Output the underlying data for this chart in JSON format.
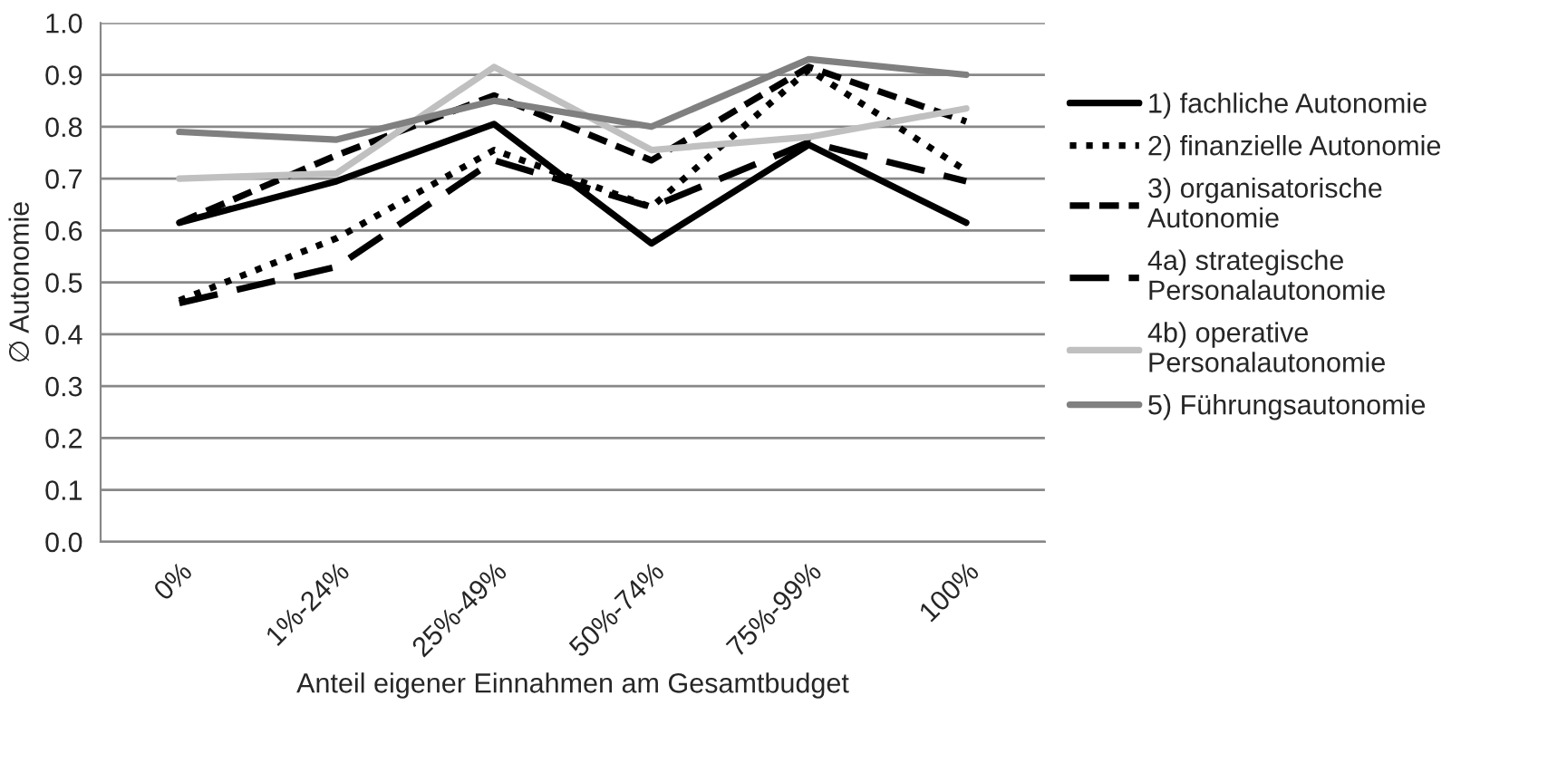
{
  "chart_data": {
    "type": "line",
    "xlabel": "Anteil eigener Einnahmen am Gesamtbudget",
    "ylabel": "∅ Autonomie",
    "categories": [
      "0%",
      "1%-24%",
      "25%-49%",
      "50%-74%",
      "75%-99%",
      "100%"
    ],
    "series": [
      {
        "name": "1) fachliche Autonomie",
        "color": "#000000",
        "line_style": "solid",
        "values": [
          0.615,
          0.695,
          0.805,
          0.575,
          0.765,
          0.615
        ]
      },
      {
        "name": "2) finanzielle Autonomie",
        "color": "#000000",
        "line_style": "dotted",
        "values": [
          0.465,
          0.585,
          0.755,
          0.645,
          0.91,
          0.715
        ]
      },
      {
        "name": "3) organisatorische Autonomie",
        "color": "#000000",
        "line_style": "dashed",
        "values": [
          0.615,
          0.745,
          0.86,
          0.735,
          0.915,
          0.81
        ]
      },
      {
        "name": "4a) strategische Personalautonomie",
        "color": "#000000",
        "line_style": "dashed",
        "values": [
          0.46,
          0.53,
          0.735,
          0.645,
          0.77,
          0.695
        ]
      },
      {
        "name": "4b) operative Personalautonomie",
        "color": "#c0c0c0",
        "line_style": "solid",
        "values": [
          0.7,
          0.71,
          0.915,
          0.755,
          0.78,
          0.835
        ]
      },
      {
        "name": "5) Führungsautonomie",
        "color": "#808080",
        "line_style": "solid",
        "values": [
          0.79,
          0.775,
          0.85,
          0.8,
          0.93,
          0.9
        ]
      }
    ],
    "ylim": [
      0,
      1
    ],
    "yticks": [
      {
        "value": 0,
        "label": "0.0"
      },
      {
        "value": 0.1,
        "label": "0.1"
      },
      {
        "value": 0.2,
        "label": "0.2"
      },
      {
        "value": 0.3,
        "label": "0.3"
      },
      {
        "value": 0.4,
        "label": "0.4"
      },
      {
        "value": 0.5,
        "label": "0.5"
      },
      {
        "value": 0.6,
        "label": "0.6"
      },
      {
        "value": 0.7,
        "label": "0.7"
      },
      {
        "value": 0.8,
        "label": "0.8"
      },
      {
        "value": 0.9,
        "label": "0.9"
      },
      {
        "value": 1,
        "label": "1.0"
      }
    ],
    "grid": "y",
    "legend": "right",
    "marker": "none"
  }
}
